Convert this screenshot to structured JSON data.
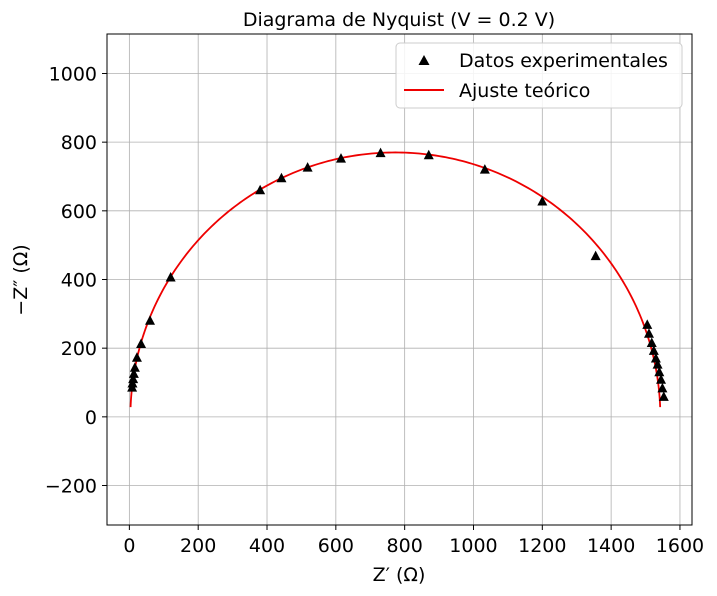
{
  "chart_data": {
    "type": "scatter",
    "title": "Diagrama de Nyquist (V = 0.2 V)",
    "xlabel": "Z′ (Ω)",
    "ylabel": "−Z″ (Ω)",
    "xlim": [
      -65,
      1635
    ],
    "ylim": [
      -315,
      1115
    ],
    "xticks": [
      0,
      200,
      400,
      600,
      800,
      1000,
      1200,
      1400,
      1600
    ],
    "yticks": [
      -200,
      0,
      200,
      400,
      600,
      800,
      1000
    ],
    "xtick_labels": [
      "0",
      "200",
      "400",
      "600",
      "800",
      "1000",
      "1200",
      "1400",
      "1600"
    ],
    "ytick_labels": [
      "−200",
      "0",
      "200",
      "400",
      "600",
      "800",
      "1000"
    ],
    "grid": true,
    "legend_position": "top-right",
    "series": [
      {
        "name": "Datos experimentales",
        "kind": "markers",
        "marker": "triangle",
        "color": "#000000",
        "points": [
          [
            8,
            85
          ],
          [
            9,
            97
          ],
          [
            11,
            110
          ],
          [
            13,
            125
          ],
          [
            16,
            143
          ],
          [
            22,
            172
          ],
          [
            34,
            212
          ],
          [
            60,
            280
          ],
          [
            120,
            406
          ],
          [
            380,
            660
          ],
          [
            442,
            695
          ],
          [
            518,
            726
          ],
          [
            615,
            752
          ],
          [
            730,
            768
          ],
          [
            870,
            762
          ],
          [
            1033,
            720
          ],
          [
            1200,
            627
          ],
          [
            1355,
            468
          ],
          [
            1505,
            268
          ],
          [
            1510,
            242
          ],
          [
            1518,
            215
          ],
          [
            1524,
            192
          ],
          [
            1530,
            170
          ],
          [
            1535,
            152
          ],
          [
            1540,
            130
          ],
          [
            1545,
            108
          ],
          [
            1549,
            83
          ],
          [
            1553,
            58
          ]
        ]
      },
      {
        "name": "Ajuste teórico",
        "kind": "line",
        "color": "#ee0000",
        "curve": {
          "center_x": 773,
          "center_y": 0,
          "radius": 770,
          "phi_start_deg": 177.9,
          "phi_end_deg": 2.1
        }
      }
    ]
  }
}
